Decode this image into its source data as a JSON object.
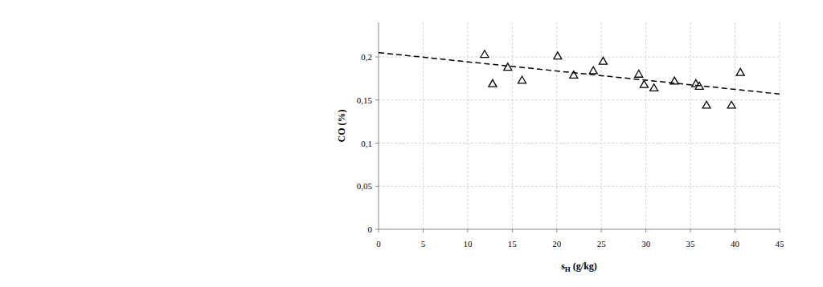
{
  "chart_data": {
    "type": "scatter",
    "x_label": "sH (g/kg)",
    "y_label": "CO (%)",
    "xlim": [
      0,
      45
    ],
    "xticks": [
      0,
      5,
      10,
      15,
      20,
      25,
      30,
      35,
      40,
      45
    ],
    "ylim": [
      0,
      0.24
    ],
    "yticks": [
      0,
      {
        "value": 0.05,
        "label": "0,05"
      },
      {
        "value": 0.1,
        "label": "0,1"
      },
      {
        "value": 0.15,
        "label": "0,15"
      },
      {
        "value": 0.2,
        "label": "0,2"
      }
    ],
    "grid": true,
    "series": [
      {
        "type": "scatter",
        "marker": "triangle",
        "color": "#000000",
        "x": [
          11.9,
          12.8,
          14.5,
          16.1,
          20.1,
          21.9,
          24.1,
          25.2,
          29.2,
          29.8,
          30.9,
          33.2,
          35.6,
          36.0,
          36.8,
          39.6,
          40.6
        ],
        "values": [
          0.203,
          0.169,
          0.188,
          0.173,
          0.201,
          0.179,
          0.184,
          0.195,
          0.18,
          0.168,
          0.164,
          0.172,
          0.169,
          0.166,
          0.144,
          0.144,
          0.182
        ]
      },
      {
        "type": "line",
        "line_style": "dashed",
        "color": "#000000",
        "x": [
          0,
          45
        ],
        "values": [
          0.205,
          0.157
        ]
      }
    ]
  }
}
